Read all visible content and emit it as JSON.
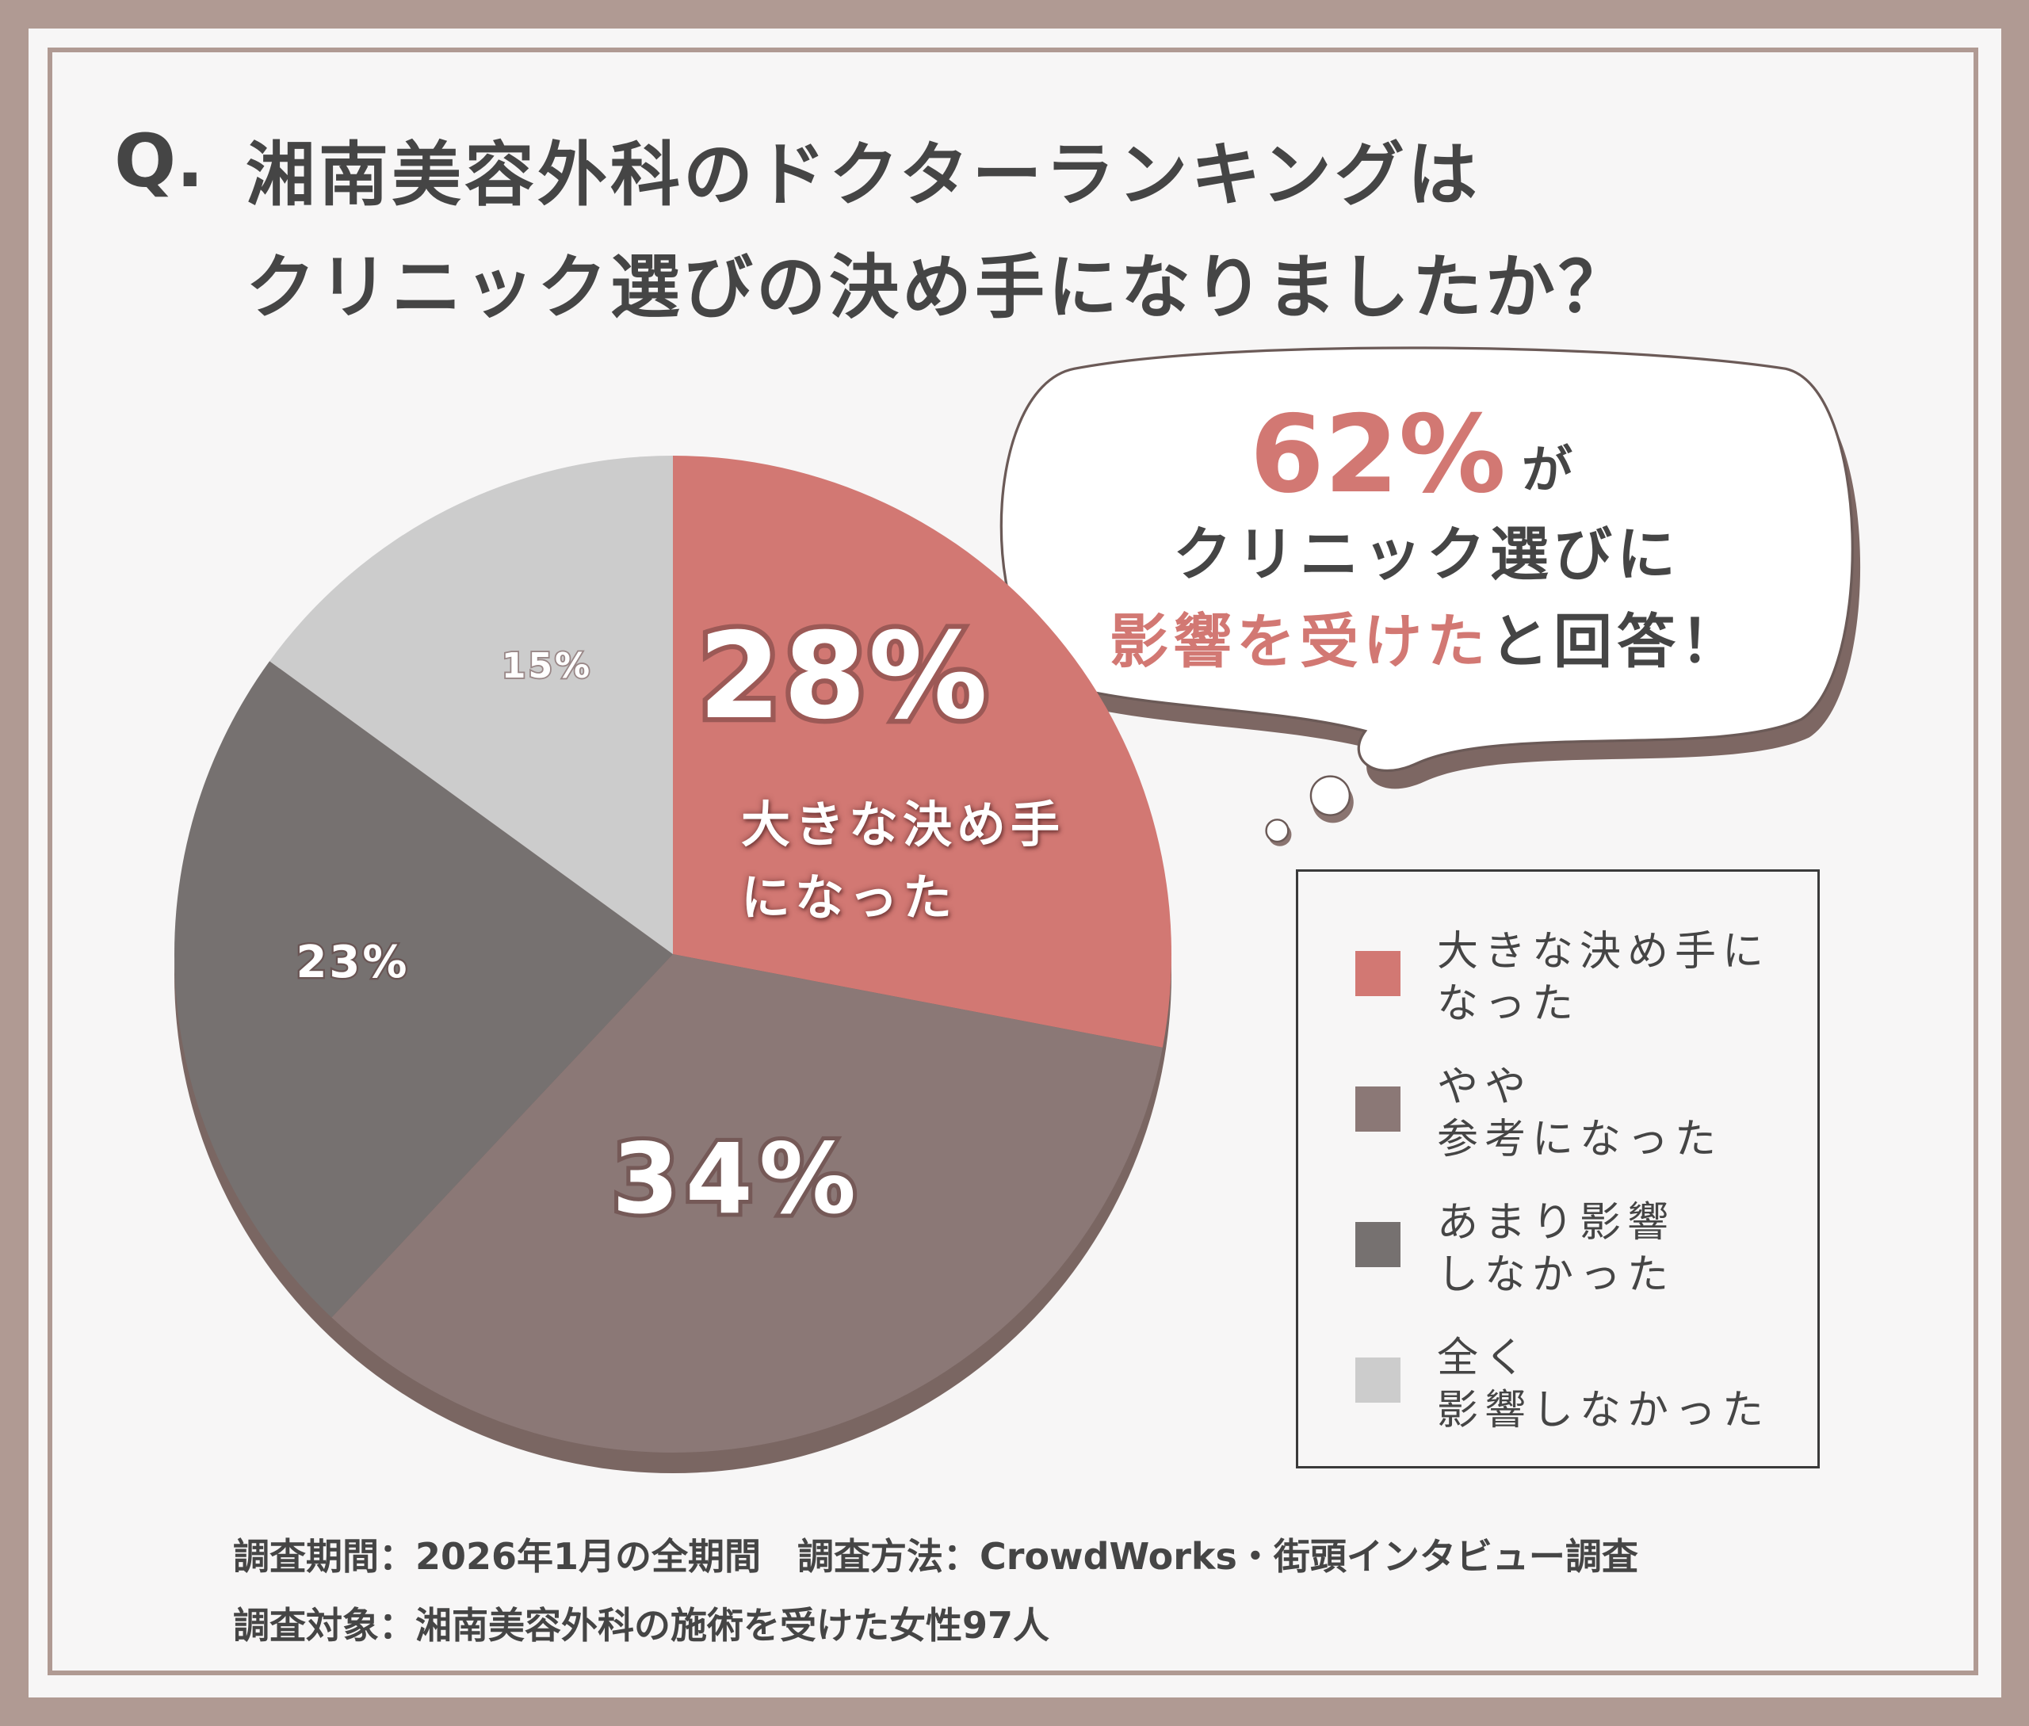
{
  "chart_data": {
    "type": "pie",
    "title_label": "Q.",
    "title": "湘南美容外科のドクターランキングは\nクリニック選びの決め手になりましたか？",
    "categories": [
      "大きな決め手に\nなった",
      "やや\n参考になった",
      "あまり影響\nしなかった",
      "全く\n影響しなかった"
    ],
    "values": [
      28,
      34,
      23,
      15
    ],
    "value_labels": [
      "28%",
      "34%",
      "23%",
      "15%"
    ],
    "colors": [
      "#d27873",
      "#8b7876",
      "#767170",
      "#cccccc"
    ],
    "slice_annotation": "大きな決め手\nになった",
    "callout": {
      "value_text": "62%",
      "line1_suffix": "が",
      "line2": "クリニック選びに",
      "line3_highlight": "影響を受けた",
      "line3_rest": "と回答！"
    },
    "footer": [
      "調査期間：2026年1月の全期間　調査方法：CrowdWorks・街頭インタビュー調査",
      "調査対象：湘南美容外科の施術を受けた女性97人"
    ]
  }
}
